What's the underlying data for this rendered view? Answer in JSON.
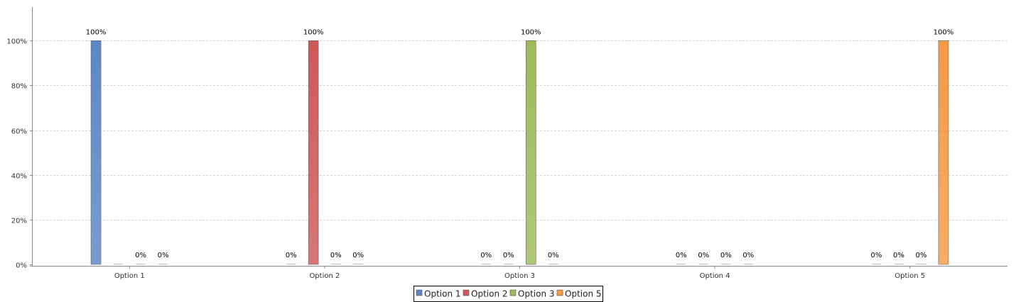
{
  "chart_data": {
    "type": "bar",
    "categories": [
      "Option 1",
      "Option 2",
      "Option 3",
      "Option 4",
      "Option 5"
    ],
    "series": [
      {
        "name": "Option 1",
        "color": "#5b87c8",
        "values": [
          100,
          0,
          0,
          0,
          0
        ],
        "labels": [
          "100%",
          "0%",
          "0%",
          "0%",
          "0%"
        ]
      },
      {
        "name": "Option 2",
        "color": "#cc5a57",
        "values": [
          0,
          100,
          0,
          0,
          0
        ],
        "labels": [
          "",
          "100%",
          "0%",
          "0%",
          "0%"
        ]
      },
      {
        "name": "Option 3",
        "color": "#9dbb59",
        "values": [
          0,
          0,
          100,
          0,
          0
        ],
        "labels": [
          "0%",
          "0%",
          "100%",
          "0%",
          "0%"
        ]
      },
      {
        "name": "Option 5",
        "color": "#f69a44",
        "values": [
          0,
          0,
          0,
          0,
          100
        ],
        "labels": [
          "0%",
          "0%",
          "0%",
          "0%",
          "100%"
        ]
      }
    ],
    "ylim": [
      0,
      115
    ],
    "yticks": [
      {
        "value": 0,
        "label": "0%"
      },
      {
        "value": 20,
        "label": "20%"
      },
      {
        "value": 40,
        "label": "40%"
      },
      {
        "value": 60,
        "label": "60%"
      },
      {
        "value": 80,
        "label": "80%"
      },
      {
        "value": 100,
        "label": "100%"
      }
    ],
    "grid": true,
    "legend_position": "bottom-center"
  }
}
